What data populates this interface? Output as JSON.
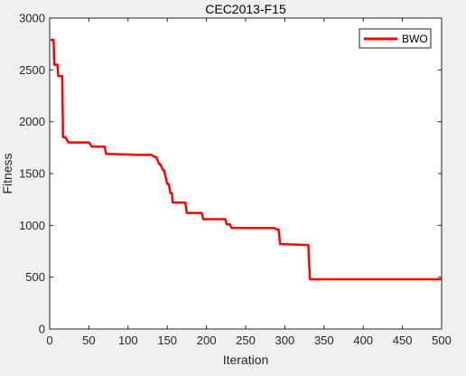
{
  "chart_data": {
    "type": "line",
    "title": "CEC2013-F15",
    "xlabel": "Iteration",
    "ylabel": "Fitness",
    "xlim": [
      0,
      500
    ],
    "ylim": [
      0,
      3000
    ],
    "x_ticks": [
      0,
      50,
      100,
      150,
      200,
      250,
      300,
      350,
      400,
      450,
      500
    ],
    "x_tick_labels": [
      "0",
      "50",
      "100",
      "150",
      "200",
      "250",
      "300",
      "350",
      "400",
      "450",
      "500"
    ],
    "y_ticks": [
      0,
      500,
      1000,
      1500,
      2000,
      2500,
      3000
    ],
    "y_tick_labels": [
      "0",
      "500",
      "1000",
      "1500",
      "2000",
      "2500",
      "3000"
    ],
    "grid": false,
    "legend_position": "top-right",
    "series": [
      {
        "name": "BWO",
        "color": "#ff0000",
        "x": [
          1,
          5,
          6,
          10,
          11,
          16,
          17,
          20,
          24,
          50,
          54,
          70,
          72,
          115,
          130,
          134,
          136,
          140,
          141,
          145,
          146,
          150,
          152,
          154,
          156,
          157,
          173,
          175,
          194,
          196,
          224,
          226,
          230,
          232,
          286,
          290,
          292,
          294,
          330,
          332,
          500
        ],
        "y": [
          2790,
          2790,
          2550,
          2550,
          2440,
          2440,
          1850,
          1850,
          1800,
          1800,
          1760,
          1760,
          1690,
          1680,
          1680,
          1660,
          1660,
          1590,
          1590,
          1530,
          1530,
          1400,
          1400,
          1310,
          1310,
          1220,
          1220,
          1120,
          1120,
          1060,
          1060,
          1010,
          1010,
          975,
          975,
          960,
          960,
          820,
          810,
          480,
          480
        ]
      }
    ]
  }
}
